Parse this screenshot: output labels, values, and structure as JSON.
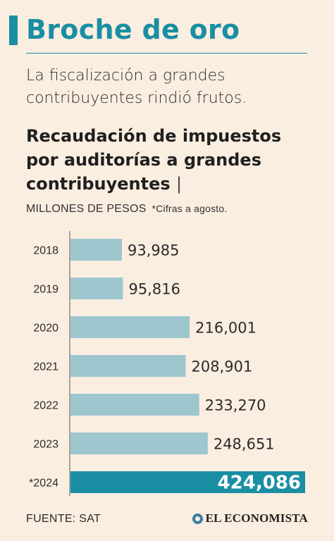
{
  "headline": "Broche de oro",
  "subhead": "La fiscalización a grandes contribuyentes rindió frutos.",
  "footer": {
    "source": "FUENTE: SAT",
    "brand": "EL ECONOMISTA",
    "brand_logo": "globe-logo-icon"
  },
  "colors": {
    "accent": "#1a8ea3",
    "bar": "#9dc6cf",
    "highlight_bar": "#1a8ea3",
    "background": "#faeee0"
  },
  "chart_data": {
    "type": "bar",
    "orientation": "horizontal",
    "title": "Recaudación de impuestos por auditorías a grandes contribuyentes",
    "title_separator": "|",
    "units": "MILLONES DE PESOS",
    "note": "*Cifras a agosto.",
    "categories": [
      "2018",
      "2019",
      "2020",
      "2021",
      "2022",
      "2023",
      "*2024"
    ],
    "values": [
      93985,
      95816,
      216001,
      208901,
      233270,
      248651,
      424086
    ],
    "value_labels": [
      "93,985",
      "95,816",
      "216,001",
      "208,901",
      "233,270",
      "248,651",
      "424,086"
    ],
    "highlight_index": 6,
    "xlim": [
      0,
      424086
    ],
    "grid": false,
    "legend": "none"
  }
}
